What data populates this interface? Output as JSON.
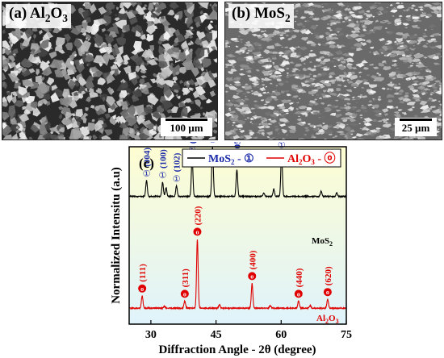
{
  "panels": [
    {
      "tag_main": "(a) Al",
      "tag_sub1": "2",
      "tag_mid": "O",
      "tag_sub2": "3",
      "scale_label": "100 µm",
      "tone": "dark"
    },
    {
      "tag_main": "(b) MoS",
      "tag_sub1": "2",
      "scale_label": "25 µm",
      "tone": "light"
    }
  ],
  "chart_data": {
    "type": "line",
    "panel_label": "(c)",
    "xlabel": "Diffraction Angle - 2θ (degree)",
    "ylabel": "Normalized Intensitu (a.u)",
    "xlim": [
      25,
      75
    ],
    "xticks": [
      "30",
      "45",
      "60",
      "75"
    ],
    "xtick_values": [
      30,
      45,
      60,
      75
    ],
    "legend": {
      "entries": [
        {
          "name": "MoS",
          "sub": "2",
          "suffix": " - ①",
          "color": "#000000"
        },
        {
          "name": "Al",
          "sub": "2",
          "mid": "O",
          "sub2": "3",
          "suffix": " - ⓞ",
          "color": "#e00000"
        }
      ],
      "position": "top"
    },
    "series": [
      {
        "name": "MoS2",
        "end_label": "MoS",
        "end_label_sub": "2",
        "color": "#000000",
        "baseline": 0.72,
        "peaks": [
          {
            "x": 29.0,
            "h": 0.09,
            "label": "(004)",
            "marker": "①"
          },
          {
            "x": 32.7,
            "h": 0.08,
            "label": "(100)",
            "marker": "①"
          },
          {
            "x": 33.5,
            "h": 0.05
          },
          {
            "x": 35.9,
            "h": 0.06,
            "label": "(102)",
            "marker": "①"
          },
          {
            "x": 39.5,
            "h": 0.22,
            "label": "(103)",
            "marker": "①"
          },
          {
            "x": 44.2,
            "h": 0.28,
            "label": "(006)",
            "marker": "①"
          },
          {
            "x": 49.8,
            "h": 0.15,
            "label": "(105)",
            "marker": "①"
          },
          {
            "x": 56.0,
            "h": 0.02
          },
          {
            "x": 58.3,
            "h": 0.04
          },
          {
            "x": 60.1,
            "h": 0.25,
            "label": "(110)",
            "marker": "①"
          },
          {
            "x": 69.2,
            "h": 0.03
          },
          {
            "x": 72.8,
            "h": 0.02
          }
        ]
      },
      {
        "name": "Al2O3",
        "end_label": "Al",
        "end_label_sub": "2",
        "end_label_mid": "O",
        "end_label_sub2": "3",
        "color": "#e00000",
        "baseline": 0.09,
        "peaks": [
          {
            "x": 28.0,
            "h": 0.07,
            "label": "(111)",
            "marker": "ⓞ"
          },
          {
            "x": 33.1,
            "h": 0.01
          },
          {
            "x": 37.8,
            "h": 0.04,
            "label": "(311)",
            "marker": "ⓞ"
          },
          {
            "x": 40.7,
            "h": 0.39,
            "label": "(220)",
            "marker": "ⓞ"
          },
          {
            "x": 45.8,
            "h": 0.02
          },
          {
            "x": 53.3,
            "h": 0.14,
            "label": "(400)",
            "marker": "ⓞ"
          },
          {
            "x": 57.5,
            "h": 0.015
          },
          {
            "x": 64.0,
            "h": 0.04,
            "label": "(440)",
            "marker": "ⓞ"
          },
          {
            "x": 66.7,
            "h": 0.015
          },
          {
            "x": 70.7,
            "h": 0.05,
            "label": "(620)",
            "marker": "ⓞ"
          }
        ]
      }
    ],
    "background_colors": [
      "#fefdd2",
      "#dff3fb"
    ],
    "grid": false
  }
}
